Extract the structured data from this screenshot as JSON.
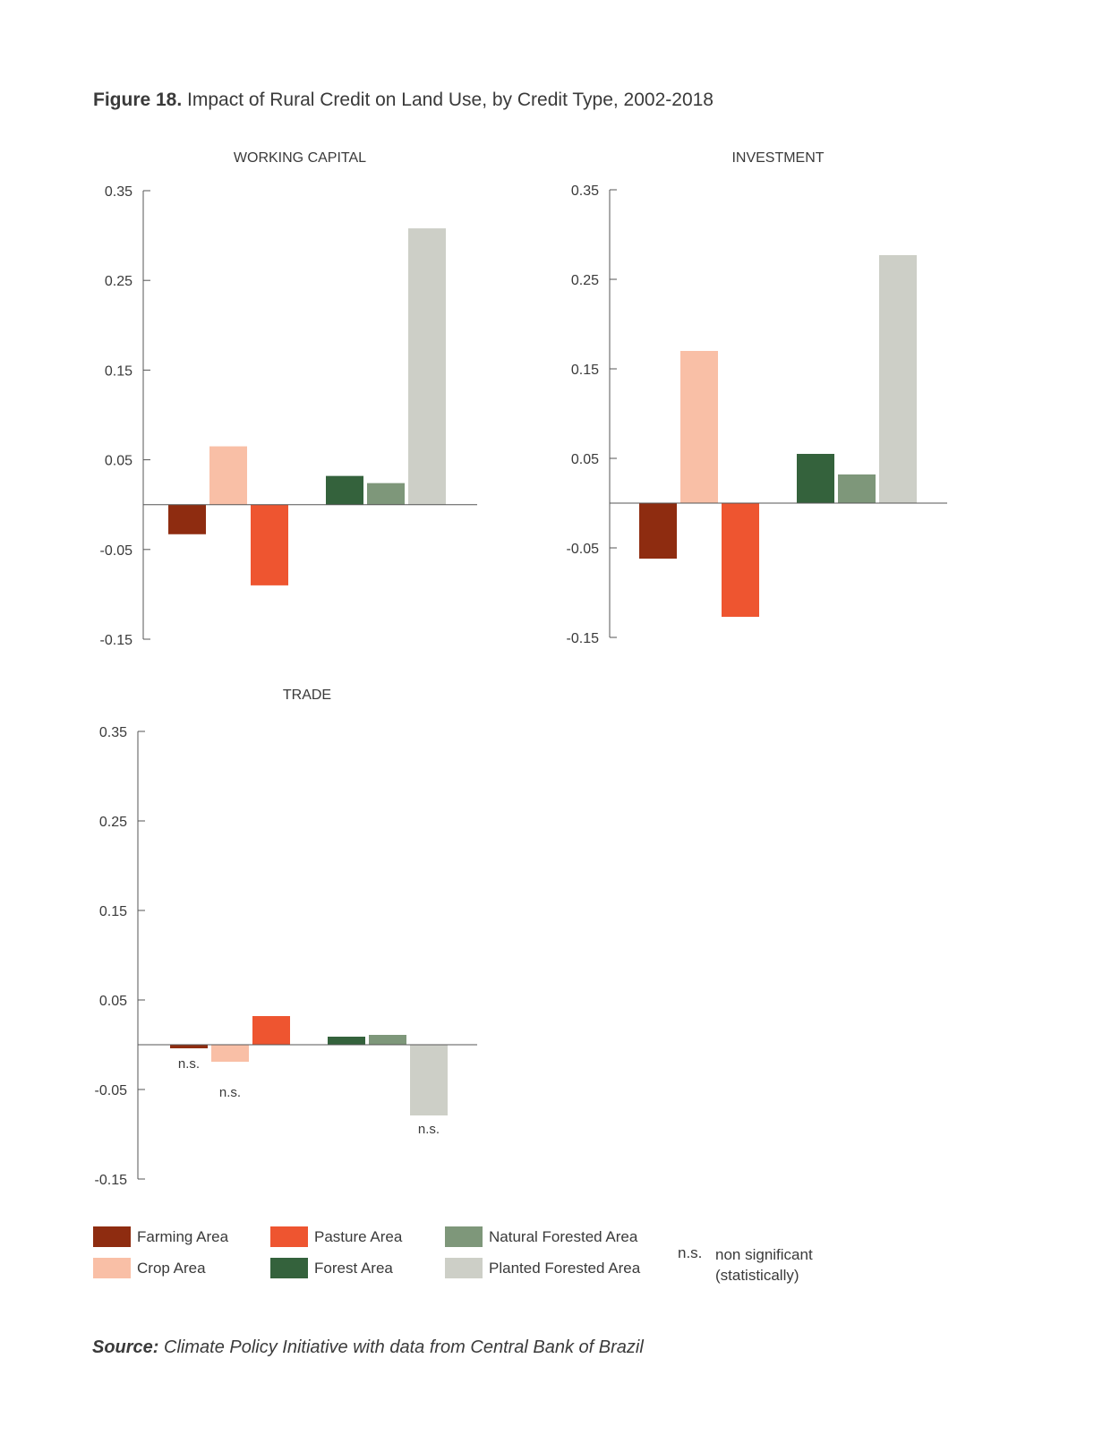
{
  "figure": {
    "label": "Figure 18.",
    "title": "Impact of Rural Credit on Land Use, by Credit Type, 2002-2018"
  },
  "source": {
    "label": "Source:",
    "text": "Climate Policy Initiative with data from Central Bank of Brazil"
  },
  "legend": {
    "items": [
      {
        "label": "Farming Area",
        "color": "#8e2c10"
      },
      {
        "label": "Crop Area",
        "color": "#f9bfa6"
      },
      {
        "label": "Pasture Area",
        "color": "#ee5530"
      },
      {
        "label": "Forest Area",
        "color": "#34623c"
      },
      {
        "label": "Natural Forested Area",
        "color": "#7e977a"
      },
      {
        "label": "Planted Forested Area",
        "color": "#cdcfc7"
      }
    ],
    "ns_abbr": "n.s.",
    "ns_desc_line1": "non significant",
    "ns_desc_line2": "(statistically)"
  },
  "chart_data": [
    {
      "type": "bar",
      "title": "WORKING CAPITAL",
      "categories": [
        "Farming Area",
        "Crop Area",
        "Pasture Area",
        "Forest Area",
        "Natural Forested Area",
        "Planted Forested Area"
      ],
      "values": [
        -0.033,
        0.065,
        -0.09,
        0.032,
        0.024,
        0.308
      ],
      "ns": [
        false,
        false,
        false,
        false,
        false,
        false
      ],
      "yticks": [
        "0.35",
        "0.25",
        "0.15",
        "0.05",
        "-0.05",
        "-0.15"
      ],
      "ylim": [
        -0.15,
        0.35
      ]
    },
    {
      "type": "bar",
      "title": "INVESTMENT",
      "categories": [
        "Farming Area",
        "Crop Area",
        "Pasture Area",
        "Forest Area",
        "Natural Forested Area",
        "Planted Forested Area"
      ],
      "values": [
        -0.062,
        0.17,
        -0.127,
        0.055,
        0.032,
        0.277
      ],
      "ns": [
        false,
        false,
        false,
        false,
        false,
        false
      ],
      "yticks": [
        "0.35",
        "0.25",
        "0.15",
        "0.05",
        "-0.05",
        "-0.15"
      ],
      "ylim": [
        -0.15,
        0.35
      ]
    },
    {
      "type": "bar",
      "title": "TRADE",
      "categories": [
        "Farming Area",
        "Crop Area",
        "Pasture Area",
        "Forest Area",
        "Natural Forested Area",
        "Planted Forested Area"
      ],
      "values": [
        -0.004,
        -0.019,
        0.032,
        0.009,
        0.011,
        -0.079
      ],
      "ns": [
        true,
        true,
        false,
        false,
        false,
        true
      ],
      "ns_label": "n.s.",
      "yticks": [
        "0.35",
        "0.25",
        "0.15",
        "0.05",
        "-0.05",
        "-0.15"
      ],
      "ylim": [
        -0.15,
        0.35
      ]
    }
  ]
}
